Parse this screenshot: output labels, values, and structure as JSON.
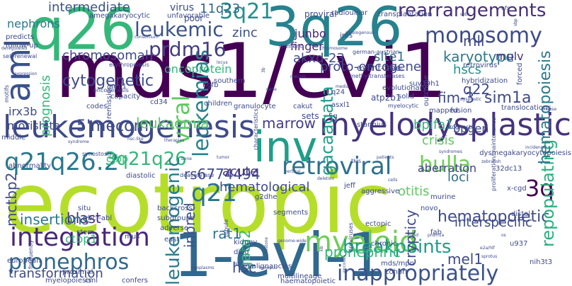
{
  "words": [
    {
      "text": "ecotropic",
      "color": "#b5de2b"
    },
    {
      "text": "mds1/evi1",
      "color": "#440154"
    },
    {
      "text": "1-evi-1",
      "color": "#31688e"
    },
    {
      "text": "q26",
      "color": "#35b779"
    },
    {
      "text": "3q26",
      "color": "#26828e"
    },
    {
      "text": "inv",
      "color": "#1f9e89"
    },
    {
      "text": "leukemogenesis",
      "color": "#3e4a89"
    },
    {
      "text": "aml",
      "color": "#3b528b"
    },
    {
      "text": "myelodysplastic",
      "color": "#46327e"
    },
    {
      "text": "integration",
      "color": "#482878"
    },
    {
      "text": "q21q26.2",
      "color": "#2a788e"
    },
    {
      "text": "myeloid",
      "color": "#6ece58"
    },
    {
      "text": "3q21",
      "color": "#21918c"
    },
    {
      "text": "leukemic",
      "color": "#3b528b"
    },
    {
      "text": "leukemias",
      "color": "#26828e"
    },
    {
      "text": "prdm16",
      "color": "#433e85"
    },
    {
      "text": "retroviral",
      "color": "#2d708e"
    },
    {
      "text": "pronephros",
      "color": "#31688e"
    },
    {
      "text": "monosomy",
      "color": "#3e4a89"
    },
    {
      "text": "rearrangements",
      "color": "#472d7b"
    },
    {
      "text": "3q21q26",
      "color": "#35b779"
    },
    {
      "text": "bulla",
      "color": "#6ece58"
    },
    {
      "text": "q21",
      "color": "#2c728e"
    },
    {
      "text": "viral",
      "color": "#5ec962"
    },
    {
      "text": "leukemogenic",
      "color": "#2a788e"
    },
    {
      "text": "inappropriately",
      "color": "#3b528b"
    },
    {
      "text": "breakpoints",
      "color": "#1f9e89"
    },
    {
      "text": "hematopoietic",
      "color": "#3e4a89"
    },
    {
      "text": "3q",
      "color": "#440154"
    },
    {
      "text": "repopulating",
      "color": "#2ab07f"
    },
    {
      "text": "intermediate",
      "color": "#3b528b"
    },
    {
      "text": "11q23",
      "color": "#31688e"
    },
    {
      "text": "cytogenetic",
      "color": "#3e4a89"
    },
    {
      "text": "chromosomal",
      "color": "#3e4a89"
    },
    {
      "text": "akxd-23",
      "color": "#3e4a89"
    },
    {
      "text": "junbo",
      "color": "#482878"
    },
    {
      "text": "finger",
      "color": "#482878"
    },
    {
      "text": "zinc",
      "color": "#3b528b"
    },
    {
      "text": "oncoprotein",
      "color": "#35b779"
    },
    {
      "text": "5'mecom",
      "color": "#3e4a89"
    },
    {
      "text": "leukaemia",
      "color": "#5ec962"
    },
    {
      "text": "marrow",
      "color": "#433e85"
    },
    {
      "text": "gacaagata",
      "color": "#1f9e89"
    },
    {
      "text": "bpifa1",
      "color": "#35b779"
    },
    {
      "text": "crisis",
      "color": "#5ec962"
    },
    {
      "text": "fim-3",
      "color": "#3e4a89"
    },
    {
      "text": "sim1a",
      "color": "#3e4a89"
    },
    {
      "text": "hematopoiesis",
      "color": "#2a788e"
    },
    {
      "text": "mll",
      "color": "#3e4a89"
    },
    {
      "text": "hscs",
      "color": "#21918c"
    },
    {
      "text": "karyotype",
      "color": "#2a788e"
    },
    {
      "text": "proto-oncogene",
      "color": "#3e4a89"
    },
    {
      "text": "site1",
      "color": "#2c728e"
    },
    {
      "text": "q22",
      "color": "#3e4a89"
    },
    {
      "text": "mulv",
      "color": "#46327e"
    },
    {
      "text": "rs6774494",
      "color": "#3e4a89"
    },
    {
      "text": "acute",
      "color": "#46327e"
    },
    {
      "text": "hematological",
      "color": "#3e4a89"
    },
    {
      "text": "aberration",
      "color": "#433e85"
    },
    {
      "text": "loci",
      "color": "#2c728e"
    },
    {
      "text": "inbred",
      "color": "#3b528b"
    },
    {
      "text": "gata2",
      "color": "#35b779"
    },
    {
      "text": "rat1",
      "color": "#2c728e"
    },
    {
      "text": "blast",
      "color": "#482878"
    },
    {
      "text": "ctbp1",
      "color": "#35b779"
    },
    {
      "text": "mctbp2",
      "color": "#3e4a89"
    },
    {
      "text": "insertions",
      "color": "#2a788e"
    },
    {
      "text": "interspecific",
      "color": "#3e4a89"
    },
    {
      "text": "mel1",
      "color": "#3e4a89"
    },
    {
      "text": "otitis",
      "color": "#5ec962"
    },
    {
      "text": "crypticy",
      "color": "#3e4a89"
    },
    {
      "text": "pronephric",
      "color": "#35b779"
    },
    {
      "text": "hsc",
      "color": "#3e4a89"
    },
    {
      "text": "transformation",
      "color": "#3e4a89"
    },
    {
      "text": "irx3b",
      "color": "#3e4a89"
    },
    {
      "text": "morishita",
      "color": "#3e4a89"
    },
    {
      "text": "prognosis",
      "color": "#35b779"
    },
    {
      "text": "nephrons",
      "color": "#2a788e"
    },
    {
      "text": "ctbp",
      "color": "#35b779"
    },
    {
      "text": "bpgen",
      "color": "#3e4a89"
    },
    {
      "text": "virus",
      "color": "#3e4a89"
    },
    {
      "text": "proviral",
      "color": "#3e4a89"
    },
    {
      "text": "poor",
      "color": "#3e4a89"
    },
    {
      "text": "transplantation",
      "color": "#3e4a89"
    },
    {
      "text": "radioulnar",
      "color": "#3e4a89"
    },
    {
      "text": "unfavorable",
      "color": "#3e4a89"
    },
    {
      "text": "predicts",
      "color": "#3e4a89"
    },
    {
      "text": "follow-up",
      "color": "#3e4a89"
    },
    {
      "text": "self-renewal",
      "color": "#3e4a89"
    },
    {
      "text": "amegakaryocytic",
      "color": "#3e4a89"
    },
    {
      "text": "efs",
      "color": "#3e4a89"
    },
    {
      "text": "chimeric",
      "color": "#3e4a89"
    },
    {
      "text": "event-free",
      "color": "#3e4a89"
    },
    {
      "text": "retrovirus",
      "color": "#3e4a89"
    },
    {
      "text": "suv39h1",
      "color": "#3e4a89"
    },
    {
      "text": "hybridization",
      "color": "#3e4a89"
    },
    {
      "text": "forced",
      "color": "#3e4a89"
    },
    {
      "text": "methyltransferases",
      "color": "#3e4a89"
    },
    {
      "text": "erythropoiesis",
      "color": "#3e4a89"
    },
    {
      "text": "aml1",
      "color": "#3e4a89"
    },
    {
      "text": "ngfb",
      "color": "#3e4a89"
    },
    {
      "text": "southern",
      "color": "#3e4a89"
    },
    {
      "text": "q24",
      "color": "#3e4a89"
    },
    {
      "text": "asxl1",
      "color": "#3e4a89"
    },
    {
      "text": "atp2b1",
      "color": "#3e4a89"
    },
    {
      "text": "solid",
      "color": "#3e4a89"
    },
    {
      "text": "outcome",
      "color": "#3e4a89"
    },
    {
      "text": "evolutionary",
      "color": "#3e4a89"
    },
    {
      "text": "mapped",
      "color": "#3e4a89"
    },
    {
      "text": "myelocytic",
      "color": "#3e4a89"
    },
    {
      "text": "5q",
      "color": "#3e4a89"
    },
    {
      "text": "ires",
      "color": "#3e4a89"
    },
    {
      "text": "capacity",
      "color": "#3e4a89"
    },
    {
      "text": "cd34",
      "color": "#3e4a89"
    },
    {
      "text": "codes",
      "color": "#3e4a89"
    },
    {
      "text": "remission",
      "color": "#3e4a89"
    },
    {
      "text": "oncogenesis",
      "color": "#3e4a89"
    },
    {
      "text": "children",
      "color": "#3e4a89"
    },
    {
      "text": "granulocyte",
      "color": "#3e4a89"
    },
    {
      "text": "cakut",
      "color": "#3e4a89"
    },
    {
      "text": "sets",
      "color": "#3e4a89"
    },
    {
      "text": "fusion",
      "color": "#3e4a89"
    },
    {
      "text": "translocations",
      "color": "#3e4a89"
    },
    {
      "text": "stannius",
      "color": "#3e4a89"
    },
    {
      "text": "middle",
      "color": "#3e4a89"
    },
    {
      "text": "abnormality",
      "color": "#3e4a89"
    },
    {
      "text": "synostosis",
      "color": "#3e4a89"
    },
    {
      "text": "diastolic",
      "color": "#3e4a89"
    },
    {
      "text": "deacetylase",
      "color": "#3e4a89"
    },
    {
      "text": "tkis",
      "color": "#3e4a89"
    },
    {
      "text": "32dc13",
      "color": "#3e4a89"
    },
    {
      "text": "dysmegakaryocytopoiesis",
      "color": "#3e4a89"
    },
    {
      "text": "x-cgd",
      "color": "#3e4a89"
    },
    {
      "text": "g2dhe",
      "color": "#3e4a89"
    },
    {
      "text": "segments",
      "color": "#3e4a89"
    },
    {
      "text": "jeff",
      "color": "#3e4a89"
    },
    {
      "text": "aggressive",
      "color": "#3e4a89"
    },
    {
      "text": "novo",
      "color": "#3e4a89"
    },
    {
      "text": "murine",
      "color": "#3e4a89"
    },
    {
      "text": "distal",
      "color": "#3e4a89"
    },
    {
      "text": "situ",
      "color": "#3e4a89"
    },
    {
      "text": "bcr-abl",
      "color": "#3e4a89"
    },
    {
      "text": "backcross",
      "color": "#3e4a89"
    },
    {
      "text": "subgroups",
      "color": "#3e4a89"
    },
    {
      "text": "adverse",
      "color": "#3e4a89"
    },
    {
      "text": "stem",
      "color": "#3e4a89"
    },
    {
      "text": "mus",
      "color": "#3e4a89"
    },
    {
      "text": "east",
      "color": "#3e4a89"
    },
    {
      "text": "kidney",
      "color": "#3e4a89"
    },
    {
      "text": "died",
      "color": "#3e4a89"
    },
    {
      "text": "ectopic",
      "color": "#3e4a89"
    },
    {
      "text": "chronic",
      "color": "#3e4a89"
    },
    {
      "text": "fab",
      "color": "#3e4a89"
    },
    {
      "text": "u937",
      "color": "#3e4a89"
    },
    {
      "text": "european",
      "color": "#3e4a89"
    },
    {
      "text": "proximal",
      "color": "#3e4a89"
    },
    {
      "text": "malignancies",
      "color": "#3e4a89"
    },
    {
      "text": "mds/mpn",
      "color": "#3e4a89"
    },
    {
      "text": "cohort",
      "color": "#3e4a89"
    },
    {
      "text": "nih3t3",
      "color": "#3e4a89"
    },
    {
      "text": "myelopoiesis",
      "color": "#3e4a89"
    },
    {
      "text": "cml",
      "color": "#3e4a89"
    },
    {
      "text": "confers",
      "color": "#3e4a89"
    },
    {
      "text": "multilineage",
      "color": "#3e4a89"
    },
    {
      "text": "haematopoietic",
      "color": "#3e4a89"
    },
    {
      "text": "tubule",
      "color": "#3e4a89"
    },
    {
      "text": "proviruses",
      "color": "#3e4a89"
    },
    {
      "text": "frequently",
      "color": "#3e4a89"
    },
    {
      "text": "deregulated",
      "color": "#3e4a89"
    },
    {
      "text": "consortium",
      "color": "#3e4a89"
    },
    {
      "text": "motifs",
      "color": "#3e4a89"
    },
    {
      "text": "german-austrian",
      "color": "#3e4a89"
    },
    {
      "text": "myelogenous",
      "color": "#3e4a89"
    },
    {
      "text": "media",
      "color": "#3e4a89"
    },
    {
      "text": "3b",
      "color": "#3e4a89"
    },
    {
      "text": "characteristics",
      "color": "#3e4a89"
    },
    {
      "text": "proliferation/maintenance",
      "color": "#3e4a89"
    },
    {
      "text": "prognostic",
      "color": "#3e4a89"
    },
    {
      "text": "dysplastic",
      "color": "#3e4a89"
    },
    {
      "text": "bone",
      "color": "#3e4a89"
    },
    {
      "text": "band",
      "color": "#3e4a89"
    },
    {
      "text": "prdm1a",
      "color": "#3e4a89"
    },
    {
      "text": "e2a/hlf",
      "color": "#3e4a89"
    },
    {
      "text": "sprotus",
      "color": "#3e4a89"
    },
    {
      "text": "encodes",
      "color": "#3e4a89"
    },
    {
      "text": "genome-wide",
      "color": "#3e4a89"
    },
    {
      "text": "histone",
      "color": "#3e4a89"
    },
    {
      "text": "nras",
      "color": "#3e4a89"
    },
    {
      "text": "rare",
      "color": "#3e4a89"
    },
    {
      "text": "kb",
      "color": "#3e4a89"
    },
    {
      "text": "xenopus",
      "color": "#3e4a89"
    },
    {
      "text": "neoplasms",
      "color": "#3e4a89"
    },
    {
      "text": "os",
      "color": "#3e4a89"
    },
    {
      "text": "sbp",
      "color": "#3e4a89"
    },
    {
      "text": "snbs",
      "color": "#3e4a89"
    },
    {
      "text": "syndromes",
      "color": "#3e4a89"
    },
    {
      "text": "incidence",
      "color": "#3e4a89"
    },
    {
      "text": "syndrome",
      "color": "#3e4a89"
    },
    {
      "text": "hsc-like",
      "color": "#3e4a89"
    },
    {
      "text": "therapies",
      "color": "#3e4a89"
    },
    {
      "text": "tumor",
      "color": "#3e4a89"
    },
    {
      "text": "vertical",
      "color": "#3e4a89"
    },
    {
      "text": "deletion",
      "color": "#3e4a89"
    },
    {
      "text": "cells",
      "color": "#3e4a89"
    },
    {
      "text": "patients",
      "color": "#3e4a89"
    },
    {
      "text": "zebrafish",
      "color": "#3e4a89"
    },
    {
      "text": "mouse",
      "color": "#3e4a89"
    },
    {
      "text": "expression",
      "color": "#3e4a89"
    },
    {
      "text": "locus",
      "color": "#3e4a89"
    },
    {
      "text": "gene",
      "color": "#3e4a89"
    },
    {
      "text": "mecom",
      "color": "#3e4a89"
    },
    {
      "text": "chromosome",
      "color": "#3e4a89"
    },
    {
      "text": "human",
      "color": "#3e4a89"
    }
  ]
}
